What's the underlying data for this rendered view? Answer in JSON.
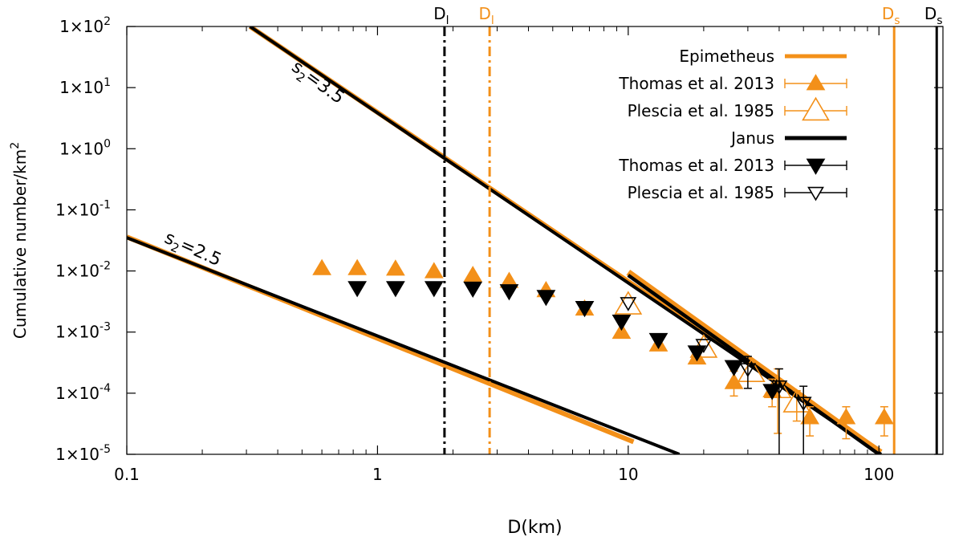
{
  "chart_data": {
    "type": "scatter",
    "title": "",
    "xlabel": "D(km)",
    "ylabel": "Cumulative number/km",
    "ylabel_sup": "2",
    "xscale": "log",
    "yscale": "log",
    "xlim": [
      0.1,
      180
    ],
    "ylim": [
      1e-05,
      100
    ],
    "x_ticks": [
      {
        "value": 0.1,
        "label": "0.1"
      },
      {
        "value": 1,
        "label": "1"
      },
      {
        "value": 10,
        "label": "10"
      },
      {
        "value": 100,
        "label": "100"
      }
    ],
    "y_ticks": [
      {
        "value": 100,
        "base": "1×10",
        "exp": "2"
      },
      {
        "value": 10,
        "base": "1×10",
        "exp": "1"
      },
      {
        "value": 1,
        "base": "1×10",
        "exp": "0"
      },
      {
        "value": 0.1,
        "base": "1×10",
        "exp": "-1"
      },
      {
        "value": 0.01,
        "base": "1×10",
        "exp": "-2"
      },
      {
        "value": 0.001,
        "base": "1×10",
        "exp": "-3"
      },
      {
        "value": 0.0001,
        "base": "1×10",
        "exp": "-4"
      },
      {
        "value": 1e-05,
        "base": "1×10",
        "exp": "-5"
      }
    ],
    "colors": {
      "epimetheus": "#f39019",
      "janus": "#000000"
    },
    "legend": {
      "position": "top-right",
      "entries": [
        {
          "label": "Epimetheus",
          "kind": "line",
          "color": "#f39019"
        },
        {
          "label": "Thomas et al. 2013",
          "kind": "filled-up-triangle",
          "color": "#f39019"
        },
        {
          "label": "Plescia et al. 1985",
          "kind": "open-up-triangle",
          "color": "#f39019"
        },
        {
          "label": "Janus",
          "kind": "line",
          "color": "#000000"
        },
        {
          "label": "Thomas et al. 2013",
          "kind": "filled-down-triangle",
          "color": "#000000"
        },
        {
          "label": "Plescia et al. 1985",
          "kind": "open-down-triangle",
          "color": "#000000"
        }
      ]
    },
    "power_law_lines": [
      {
        "name": "epimetheus-s2-3.5",
        "color": "#f39019",
        "x": [
          0.31,
          102
        ],
        "y": [
          100,
          1.1e-05
        ]
      },
      {
        "name": "janus-s2-3.5",
        "color": "#000000",
        "x": [
          0.31,
          102
        ],
        "y": [
          100,
          1e-05
        ]
      },
      {
        "name": "epimetheus-s2-2.5",
        "color": "#f39019",
        "x": [
          0.1,
          10.5
        ],
        "y": [
          0.036,
          1.6e-05
        ]
      },
      {
        "name": "janus-s2-2.5",
        "color": "#000000",
        "x": [
          0.1,
          16
        ],
        "y": [
          0.035,
          1e-05
        ]
      }
    ],
    "fit_lines": [
      {
        "name": "epimetheus-fit",
        "color": "#f39019",
        "x": [
          10,
          100
        ],
        "y": [
          0.0095,
          1.1e-05
        ]
      },
      {
        "name": "janus-fit",
        "color": "#000000",
        "x": [
          10,
          100
        ],
        "y": [
          0.0085,
          1e-05
        ]
      }
    ],
    "annotations": [
      {
        "label": "s",
        "sub": "2",
        "rest": "=3.5",
        "x": 0.45,
        "y": 20,
        "angle": 36
      },
      {
        "label": "s",
        "sub": "2",
        "rest": "=2.5",
        "x": 0.14,
        "y": 0.03,
        "angle": 24
      }
    ],
    "vertical_lines": [
      {
        "name": "janus-Dl",
        "x": 1.85,
        "color": "#000000",
        "style": "dashdot",
        "label": "D",
        "sub": "l"
      },
      {
        "name": "epimetheus-Dl",
        "x": 2.8,
        "color": "#f39019",
        "style": "dashdot",
        "label": "D",
        "sub": "l"
      },
      {
        "name": "epimetheus-Ds",
        "x": 115,
        "color": "#f39019",
        "style": "solid",
        "label": "D",
        "sub": "s"
      },
      {
        "name": "janus-Ds",
        "x": 170,
        "color": "#000000",
        "style": "solid",
        "label": "D",
        "sub": "s"
      }
    ],
    "series": [
      {
        "name": "Epimetheus Thomas et al. 2013",
        "marker": "filled-up-triangle",
        "color": "#f39019",
        "points": [
          {
            "x": 0.6,
            "y": 0.011
          },
          {
            "x": 0.83,
            "y": 0.011
          },
          {
            "x": 1.18,
            "y": 0.0108
          },
          {
            "x": 1.68,
            "y": 0.0098
          },
          {
            "x": 2.4,
            "y": 0.0085
          },
          {
            "x": 3.35,
            "y": 0.0068
          },
          {
            "x": 4.7,
            "y": 0.0048
          },
          {
            "x": 6.7,
            "y": 0.0024
          },
          {
            "x": 9.4,
            "y": 0.001
          },
          {
            "x": 13.2,
            "y": 0.00062
          },
          {
            "x": 18.8,
            "y": 0.00038
          },
          {
            "x": 26.4,
            "y": 0.00015,
            "err_lo": 9e-05,
            "err_hi": 0.00023
          },
          {
            "x": 37.5,
            "y": 0.00011,
            "err_lo": 6e-05,
            "err_hi": 0.00017
          },
          {
            "x": 53,
            "y": 4e-05,
            "err_lo": 2e-05,
            "err_hi": 6e-05
          },
          {
            "x": 74,
            "y": 4e-05,
            "err_lo": 1.8e-05,
            "err_hi": 6e-05
          },
          {
            "x": 105,
            "y": 4e-05,
            "err_lo": 2e-05,
            "err_hi": 6e-05
          }
        ]
      },
      {
        "name": "Epimetheus Plescia et al. 1985",
        "marker": "open-up-triangle",
        "color": "#f39019",
        "points": [
          {
            "x": 10,
            "y": 0.0028
          },
          {
            "x": 20,
            "y": 0.00055
          },
          {
            "x": 31,
            "y": 0.00022
          },
          {
            "x": 39.5,
            "y": 0.00012,
            "err_lo": 2.2e-05,
            "err_hi": 0.00025
          },
          {
            "x": 47,
            "y": 7e-05,
            "err_lo": 3.5e-05,
            "err_hi": 0.00011
          }
        ]
      },
      {
        "name": "Janus Thomas et al. 2013",
        "marker": "filled-down-triangle",
        "color": "#000000",
        "points": [
          {
            "x": 0.83,
            "y": 0.0053
          },
          {
            "x": 1.18,
            "y": 0.0053
          },
          {
            "x": 1.68,
            "y": 0.0053
          },
          {
            "x": 2.4,
            "y": 0.0052
          },
          {
            "x": 3.35,
            "y": 0.0047
          },
          {
            "x": 4.7,
            "y": 0.0038
          },
          {
            "x": 6.7,
            "y": 0.0025
          },
          {
            "x": 9.4,
            "y": 0.0015
          },
          {
            "x": 13.2,
            "y": 0.00075
          },
          {
            "x": 18.8,
            "y": 0.00047
          },
          {
            "x": 26.4,
            "y": 0.00027
          },
          {
            "x": 37.5,
            "y": 0.00011
          }
        ]
      },
      {
        "name": "Janus Plescia et al. 1985",
        "marker": "open-down-triangle",
        "color": "#000000",
        "points": [
          {
            "x": 10,
            "y": 0.003
          },
          {
            "x": 20,
            "y": 0.00062
          },
          {
            "x": 30,
            "y": 0.00025,
            "err_lo": 0.00012,
            "err_hi": 0.0004
          },
          {
            "x": 40,
            "y": 0.00013,
            "err_lo": 1e-05,
            "err_hi": 0.00025
          },
          {
            "x": 50,
            "y": 7e-05,
            "err_lo": 1e-05,
            "err_hi": 0.00013
          }
        ]
      }
    ]
  }
}
